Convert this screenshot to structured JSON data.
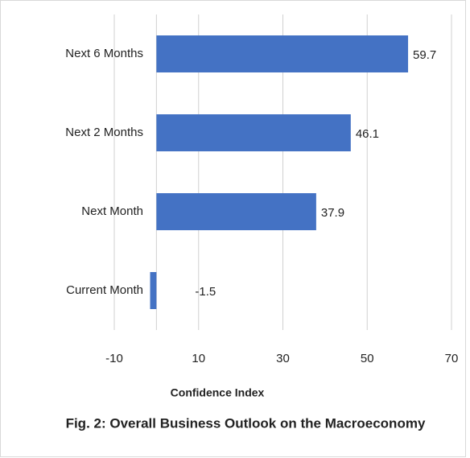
{
  "chart_data": {
    "type": "bar",
    "orientation": "horizontal",
    "title": "Fig. 2: Overall Business Outlook on the Macroeconomy",
    "x_label": "Confidence Index",
    "categories": [
      "Next 6 Months",
      "Next 2 Months",
      "Next Month",
      "Current Month"
    ],
    "values": [
      59.7,
      46.1,
      37.9,
      -1.5
    ],
    "color": "#4472c4",
    "xlim": [
      -10,
      70
    ],
    "xticks": [
      -10,
      10,
      30,
      50,
      70
    ],
    "grid": true
  }
}
